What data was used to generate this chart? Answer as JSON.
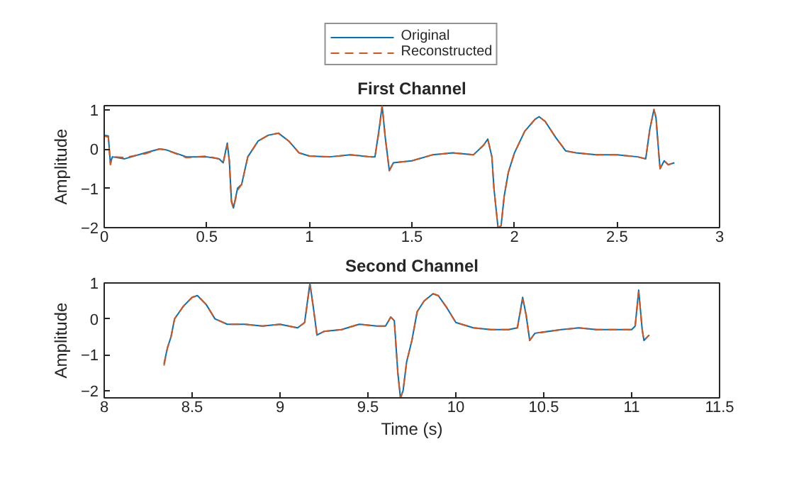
{
  "chart_data": [
    {
      "type": "line",
      "title": "First Channel",
      "ylabel": "Amplitude",
      "xlim": [
        0,
        3
      ],
      "xticks": [
        0,
        0.5,
        1,
        1.5,
        2,
        2.5,
        3
      ],
      "ylim": [
        -2,
        1.1
      ],
      "yticks": [
        -2,
        -1,
        0,
        1
      ],
      "grid": false,
      "legend": "top",
      "series": [
        {
          "name": "Original",
          "color": "#0072bd",
          "line_style": "solid",
          "x": [
            0.0,
            0.02,
            0.03,
            0.04,
            0.1,
            0.2,
            0.27,
            0.3,
            0.4,
            0.5,
            0.56,
            0.58,
            0.6,
            0.61,
            0.62,
            0.63,
            0.65,
            0.67,
            0.7,
            0.75,
            0.8,
            0.85,
            0.9,
            0.95,
            1.0,
            1.1,
            1.2,
            1.3,
            1.32,
            1.34,
            1.355,
            1.37,
            1.39,
            1.41,
            1.5,
            1.6,
            1.7,
            1.8,
            1.85,
            1.87,
            1.89,
            1.9,
            1.92,
            1.935,
            1.95,
            1.97,
            2.0,
            2.05,
            2.1,
            2.12,
            2.15,
            2.2,
            2.25,
            2.3,
            2.4,
            2.5,
            2.6,
            2.64,
            2.66,
            2.68,
            2.69,
            2.705,
            2.71,
            2.73,
            2.75,
            2.78
          ],
          "values": [
            0.35,
            0.33,
            -0.35,
            -0.2,
            -0.25,
            -0.1,
            0.0,
            -0.02,
            -0.2,
            -0.2,
            -0.25,
            -0.35,
            0.15,
            -0.3,
            -1.3,
            -1.5,
            -1.0,
            -0.9,
            -0.2,
            0.2,
            0.35,
            0.4,
            0.2,
            -0.1,
            -0.18,
            -0.2,
            -0.15,
            -0.2,
            -0.2,
            0.5,
            1.1,
            0.3,
            -0.55,
            -0.35,
            -0.3,
            -0.15,
            -0.1,
            -0.15,
            0.1,
            0.25,
            -0.2,
            -1.0,
            -2.0,
            -1.95,
            -1.2,
            -0.6,
            -0.1,
            0.45,
            0.75,
            0.82,
            0.7,
            0.3,
            -0.05,
            -0.1,
            -0.15,
            -0.15,
            -0.2,
            -0.25,
            0.5,
            1.0,
            0.8,
            -0.2,
            -0.5,
            -0.3,
            -0.4,
            -0.35
          ]
        },
        {
          "name": "Reconstructed",
          "color": "#d95319",
          "line_style": "dashed",
          "x": [
            0.0,
            0.02,
            0.03,
            0.04,
            0.1,
            0.2,
            0.27,
            0.3,
            0.4,
            0.5,
            0.56,
            0.58,
            0.6,
            0.61,
            0.62,
            0.63,
            0.65,
            0.67,
            0.7,
            0.75,
            0.8,
            0.85,
            0.9,
            0.95,
            1.0,
            1.1,
            1.2,
            1.3,
            1.32,
            1.34,
            1.355,
            1.37,
            1.39,
            1.41,
            1.5,
            1.6,
            1.7,
            1.8,
            1.85,
            1.87,
            1.89,
            1.9,
            1.92,
            1.935,
            1.95,
            1.97,
            2.0,
            2.05,
            2.1,
            2.12,
            2.15,
            2.2,
            2.25,
            2.3,
            2.4,
            2.5,
            2.6,
            2.64,
            2.66,
            2.68,
            2.69,
            2.705,
            2.71,
            2.73,
            2.75,
            2.78
          ],
          "values": [
            0.33,
            0.3,
            -0.4,
            -0.2,
            -0.22,
            -0.12,
            0.0,
            -0.02,
            -0.22,
            -0.18,
            -0.25,
            -0.35,
            0.1,
            -0.3,
            -1.35,
            -1.5,
            -1.05,
            -0.9,
            -0.2,
            0.2,
            0.35,
            0.4,
            0.2,
            -0.1,
            -0.18,
            -0.2,
            -0.15,
            -0.2,
            -0.2,
            0.45,
            1.1,
            0.3,
            -0.55,
            -0.35,
            -0.3,
            -0.15,
            -0.1,
            -0.15,
            0.1,
            0.25,
            -0.2,
            -1.0,
            -2.0,
            -1.95,
            -1.2,
            -0.6,
            -0.1,
            0.45,
            0.75,
            0.82,
            0.7,
            0.3,
            -0.05,
            -0.1,
            -0.15,
            -0.15,
            -0.2,
            -0.25,
            0.5,
            1.0,
            0.8,
            -0.2,
            -0.5,
            -0.3,
            -0.4,
            -0.35
          ]
        }
      ]
    },
    {
      "type": "line",
      "title": "Second Channel",
      "xlabel": "Time (s)",
      "ylabel": "Amplitude",
      "xlim": [
        8,
        11.5
      ],
      "xticks": [
        8,
        8.5,
        9,
        9.5,
        10,
        10.5,
        11,
        11.5
      ],
      "ylim": [
        -2.2,
        1
      ],
      "yticks": [
        -2,
        -1,
        0,
        1
      ],
      "grid": false,
      "series": [
        {
          "color": "#0072bd",
          "line_style": "solid",
          "x": [
            8.34,
            8.36,
            8.38,
            8.4,
            8.45,
            8.5,
            8.53,
            8.58,
            8.63,
            8.7,
            8.8,
            8.9,
            9.0,
            9.1,
            9.14,
            9.17,
            9.19,
            9.21,
            9.25,
            9.35,
            9.45,
            9.55,
            9.6,
            9.63,
            9.65,
            9.67,
            9.685,
            9.7,
            9.72,
            9.75,
            9.78,
            9.82,
            9.87,
            9.9,
            9.95,
            10.0,
            10.1,
            10.2,
            10.3,
            10.35,
            10.38,
            10.4,
            10.42,
            10.45,
            10.6,
            10.7,
            10.8,
            10.9,
            11.0,
            11.02,
            11.04,
            11.06,
            11.07,
            11.1
          ],
          "values": [
            -1.25,
            -0.8,
            -0.5,
            0.0,
            0.35,
            0.6,
            0.65,
            0.4,
            0.0,
            -0.15,
            -0.15,
            -0.2,
            -0.15,
            -0.25,
            -0.1,
            1.0,
            0.3,
            -0.45,
            -0.35,
            -0.3,
            -0.15,
            -0.2,
            -0.2,
            0.05,
            -0.05,
            -1.5,
            -2.2,
            -2.0,
            -1.2,
            -0.6,
            0.2,
            0.5,
            0.7,
            0.65,
            0.3,
            -0.1,
            -0.25,
            -0.3,
            -0.3,
            -0.25,
            0.6,
            0.1,
            -0.6,
            -0.4,
            -0.3,
            -0.25,
            -0.3,
            -0.3,
            -0.3,
            -0.2,
            0.8,
            -0.3,
            -0.6,
            -0.45
          ]
        },
        {
          "color": "#d95319",
          "line_style": "dashed",
          "x": [
            8.34,
            8.36,
            8.38,
            8.4,
            8.45,
            8.5,
            8.53,
            8.58,
            8.63,
            8.7,
            8.8,
            8.9,
            9.0,
            9.1,
            9.14,
            9.17,
            9.19,
            9.21,
            9.25,
            9.35,
            9.45,
            9.55,
            9.6,
            9.63,
            9.65,
            9.67,
            9.685,
            9.7,
            9.72,
            9.75,
            9.78,
            9.82,
            9.87,
            9.9,
            9.95,
            10.0,
            10.1,
            10.2,
            10.3,
            10.35,
            10.38,
            10.4,
            10.42,
            10.45,
            10.6,
            10.7,
            10.8,
            10.9,
            11.0,
            11.02,
            11.04,
            11.06,
            11.07,
            11.1
          ],
          "values": [
            -1.3,
            -0.8,
            -0.5,
            0.0,
            0.35,
            0.6,
            0.65,
            0.4,
            0.0,
            -0.15,
            -0.15,
            -0.2,
            -0.15,
            -0.25,
            -0.1,
            0.95,
            0.3,
            -0.45,
            -0.35,
            -0.3,
            -0.15,
            -0.2,
            -0.2,
            0.05,
            -0.05,
            -1.5,
            -2.2,
            -2.0,
            -1.2,
            -0.6,
            0.2,
            0.5,
            0.7,
            0.65,
            0.3,
            -0.1,
            -0.25,
            -0.3,
            -0.3,
            -0.25,
            0.55,
            0.1,
            -0.6,
            -0.4,
            -0.3,
            -0.25,
            -0.3,
            -0.3,
            -0.3,
            -0.2,
            0.75,
            -0.3,
            -0.6,
            -0.45
          ]
        }
      ]
    }
  ]
}
